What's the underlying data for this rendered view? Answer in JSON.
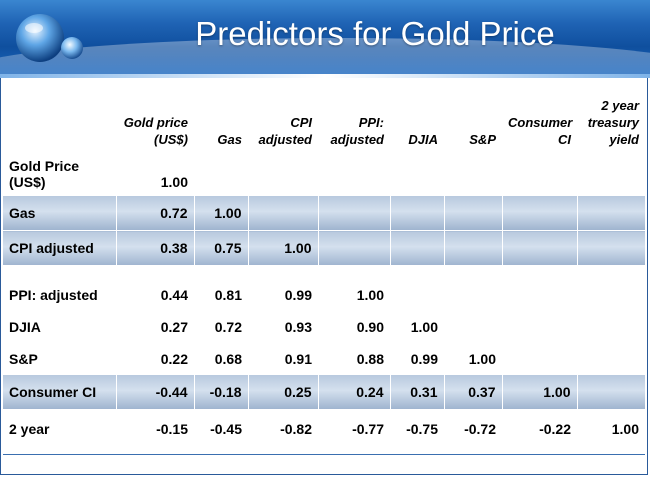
{
  "slide": {
    "title": "Predictors for Gold Price"
  },
  "table": {
    "columns": [
      "Gold price (US$)",
      "Gas",
      "CPI adjusted",
      "PPI: adjusted",
      "DJIA",
      "S&P",
      "Consumer CI",
      "2 year treasury yield"
    ],
    "rows": [
      {
        "label": "Gold Price (US$)",
        "values": [
          "1.00",
          "",
          "",
          "",
          "",
          "",
          "",
          ""
        ]
      },
      {
        "label": "Gas",
        "values": [
          "0.72",
          "1.00",
          "",
          "",
          "",
          "",
          "",
          ""
        ]
      },
      {
        "label": "CPI  adjusted",
        "values": [
          "0.38",
          "0.75",
          "1.00",
          "",
          "",
          "",
          "",
          ""
        ]
      },
      {
        "label": "PPI: adjusted",
        "values": [
          "0.44",
          "0.81",
          "0.99",
          "1.00",
          "",
          "",
          "",
          ""
        ]
      },
      {
        "label": "DJIA",
        "values": [
          "0.27",
          "0.72",
          "0.93",
          "0.90",
          "1.00",
          "",
          "",
          ""
        ]
      },
      {
        "label": "S&P",
        "values": [
          "0.22",
          "0.68",
          "0.91",
          "0.88",
          "0.99",
          "1.00",
          "",
          ""
        ]
      },
      {
        "label": "Consumer CI",
        "values": [
          "-0.44",
          "-0.18",
          "0.25",
          "0.24",
          "0.31",
          "0.37",
          "1.00",
          ""
        ]
      },
      {
        "label": "2 year",
        "values": [
          "-0.15",
          "-0.45",
          "-0.82",
          "-0.77",
          "-0.75",
          "-0.72",
          "-0.22",
          "1.00"
        ]
      }
    ]
  },
  "colors": {
    "header_blue": "#1f63b4",
    "shade_blue": "#b8c9de"
  }
}
